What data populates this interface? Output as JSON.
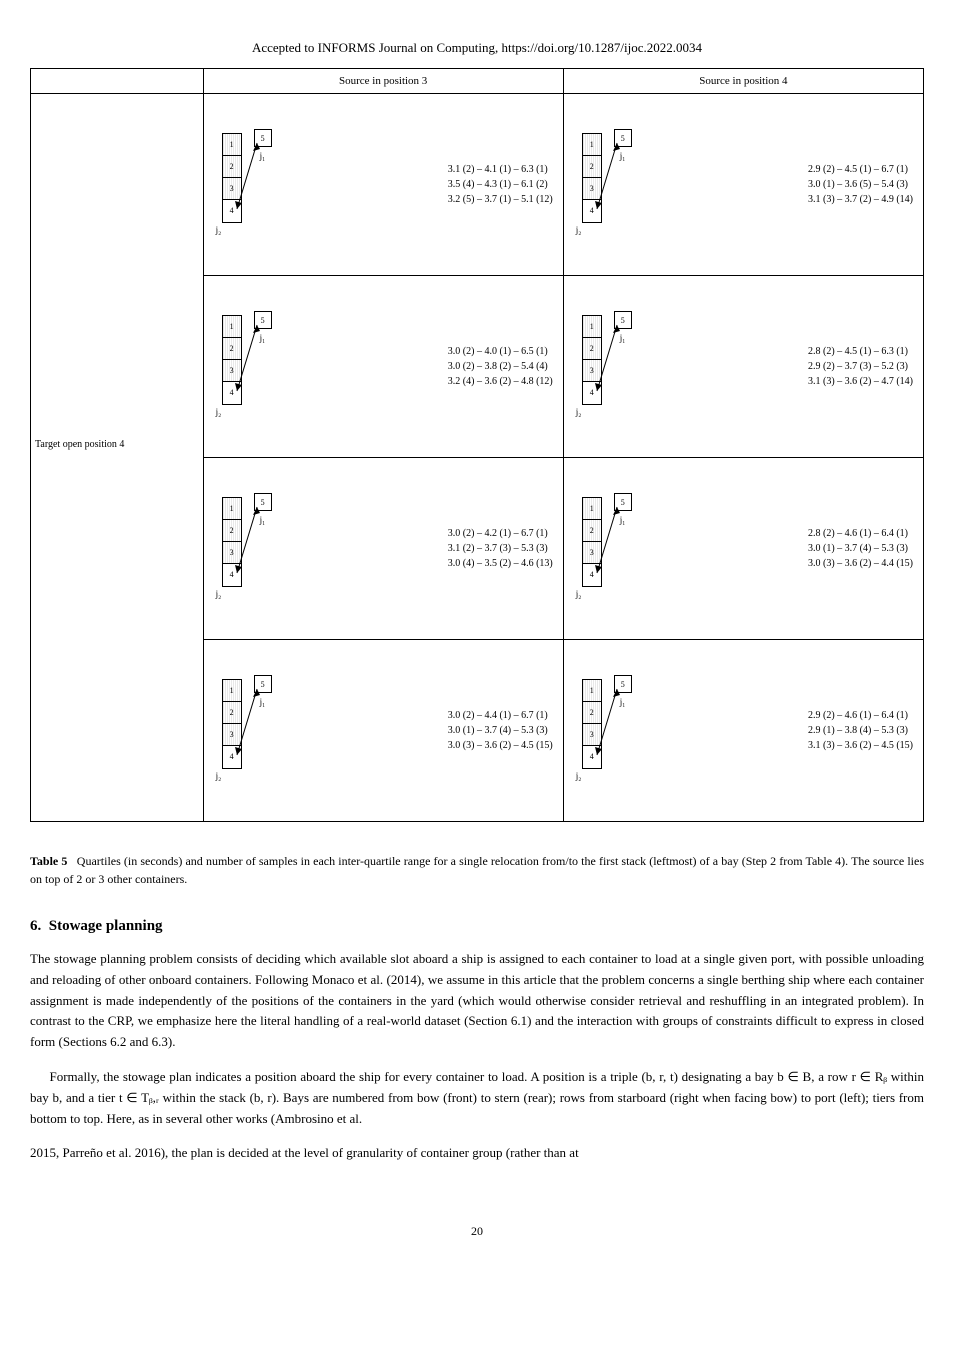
{
  "running_header": "Accepted to INFORMS Journal on Computing, https://doi.org/10.1287/ijoc.2022.0034",
  "table_headers": {
    "col1": "",
    "col2": "Source in position 3",
    "col3": "Source in position 4"
  },
  "row_label": "Target open position 4",
  "stack_positions": [
    "1",
    "2",
    "3",
    "4"
  ],
  "moving_label": "5",
  "j1_label": "j₁",
  "j2_label": "j₂",
  "cells": [
    {
      "left": {
        "rows": [
          "3.1 (2) – 4.1 (1)  – 6.3 (1)",
          "3.5 (4) – 4.3 (1)  – 6.1 (2)",
          "3.2 (5) – 3.7 (1)  – 5.1 (12)"
        ]
      },
      "right": {
        "rows": [
          "2.9 (2) – 4.5 (1)  – 6.7 (1)",
          "3.0 (1) – 3.6 (5)  – 5.4 (3)",
          "3.1 (3) – 3.7 (2)  – 4.9 (14)"
        ]
      }
    },
    {
      "left": {
        "rows": [
          "3.0 (2) – 4.0 (1)  – 6.5 (1)",
          "3.0 (2) – 3.8 (2)  – 5.4 (4)",
          "3.2 (4) – 3.6 (2)  – 4.8 (12)"
        ]
      },
      "right": {
        "rows": [
          "2.8 (2) – 4.5 (1)  – 6.3 (1)",
          "2.9 (2) – 3.7 (3)  – 5.2 (3)",
          "3.1 (3) – 3.6 (2)  – 4.7 (14)"
        ]
      }
    },
    {
      "left": {
        "rows": [
          "3.0 (2) – 4.2 (1)  – 6.7 (1)",
          "3.1 (2) – 3.7 (3)  – 5.3 (3)",
          "3.0 (4) – 3.5 (2)  – 4.6 (13)"
        ]
      },
      "right": {
        "rows": [
          "2.8 (2) – 4.6 (1)  – 6.4 (1)",
          "3.0 (1) – 3.7 (4)  – 5.3 (3)",
          "3.0 (3) – 3.6 (2)  – 4.4 (15)"
        ]
      }
    },
    {
      "left": {
        "rows": [
          "3.0 (2) – 4.4 (1)  – 6.7 (1)",
          "3.0 (1) – 3.7 (4)  – 5.3 (3)",
          "3.0 (3) – 3.6 (2)  – 4.5 (15)"
        ]
      },
      "right": {
        "rows": [
          "2.9 (2) – 4.6 (1)  – 6.4 (1)",
          "2.9 (1) – 3.8 (4)  – 5.3 (3)",
          "3.1 (3) – 3.6 (2)  – 4.5 (15)"
        ]
      }
    }
  ],
  "table_number": "Table 5",
  "table_caption": "Quartiles (in seconds) and number of samples in each inter-quartile range for a single relocation from/to the first stack (leftmost) of a bay (Step 2 from Table 4). The source lies on top of 2 or 3 other containers.",
  "section_number": "6.",
  "section_title": "Stowage planning",
  "paragraphs": [
    "The stowage planning problem consists of deciding which available slot aboard a ship is assigned to each container to load at a single given port, with possible unloading and reloading of other onboard containers. Following Monaco et al. (2014), we assume in this article that the problem concerns a single berthing ship where each container assignment is made independently of the positions of the containers in the yard (which would otherwise consider retrieval and reshuffling in an integrated problem). In contrast to the CRP, we emphasize here the literal handling of a real-world dataset (Section 6.1) and the interaction with groups of constraints difficult to express in closed form (Sections 6.2 and 6.3).",
    "Formally, the stowage plan indicates a position aboard the ship for every container to load. A position is a triple (b, r, t) designating a bay b ∈ B, a row r ∈ Rᵦ within bay b, and a tier t ∈ Tᵦ,ᵣ within the stack (b, r). Bays are numbered from bow (front) to stern (rear); rows from starboard (right when facing bow) to port (left); tiers from bottom to top. Here, as in several other works (Ambrosino et al.",
    "2015, Parreño et al. 2016), the plan is decided at the level of granularity of container group (rather than at"
  ],
  "page_number": "20"
}
